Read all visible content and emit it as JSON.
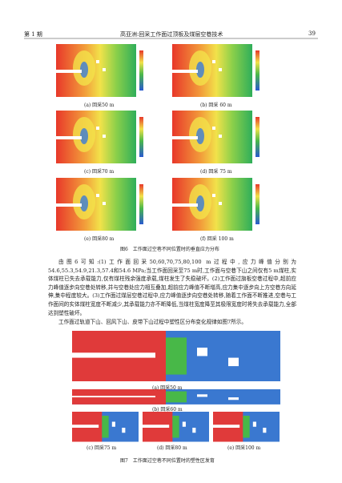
{
  "header": {
    "issue": "第 1 期",
    "running_title": "高亚洲:回采工作面过顶板及煤层空巷技术",
    "page_number": "39"
  },
  "figure6": {
    "panels": [
      "(a) 回采50 m",
      "(b) 回采 60 m",
      "(c) 回采70 m",
      "(d) 回采 75 m",
      "(e) 回采80 m",
      "(f) 回采 100 m"
    ],
    "caption": "图6　工作面过空巷不同位置时的垂直应力分布"
  },
  "body": {
    "paragraphs": [
      "由图6可知:(1)工作面回采50,60,70,75,80,100 m过程中,应力峰值分别为54.6,55.3,54.9,21.3,57.4和54.6 MPa;当工作面回采至75 m时,工作面与空巷下山之间仅有5 m煤柱,实体煤柱已失去承载能力,仅有煤柱残余强度承载,煤柱发生了失稳破坏。(2)工作面过旗板空巷过程中,超前应力峰值逐步向空巷处转移,并与空巷处应力相互叠加,超前应力峰值不断增高,应力集中逐步向上方空巷方向延伸,集中程度较大。(3)工作面过煤层空巷过程中,应力峰值逐步向空巷处转移,随着工作面不断推进,空巷与工作面间的实体煤柱宽度不断减少,其承载能力亦不断降低,当煤柱宽度降至其极限宽度时将失去承载能力,全部达到塑性破坏。",
      "工作面过轨道下山、回风下山、皮带下山过程中塑性区分布变化规律如图7所示。"
    ]
  },
  "figure7": {
    "panels": [
      "(a) 回采50 m",
      "(b) 回采60 m",
      "(c) 回采75 m",
      "(d) 回采80 m",
      "(e) 回采100 m"
    ],
    "caption": "图7　工作面过空巷不同位置时的塑性区发育"
  }
}
